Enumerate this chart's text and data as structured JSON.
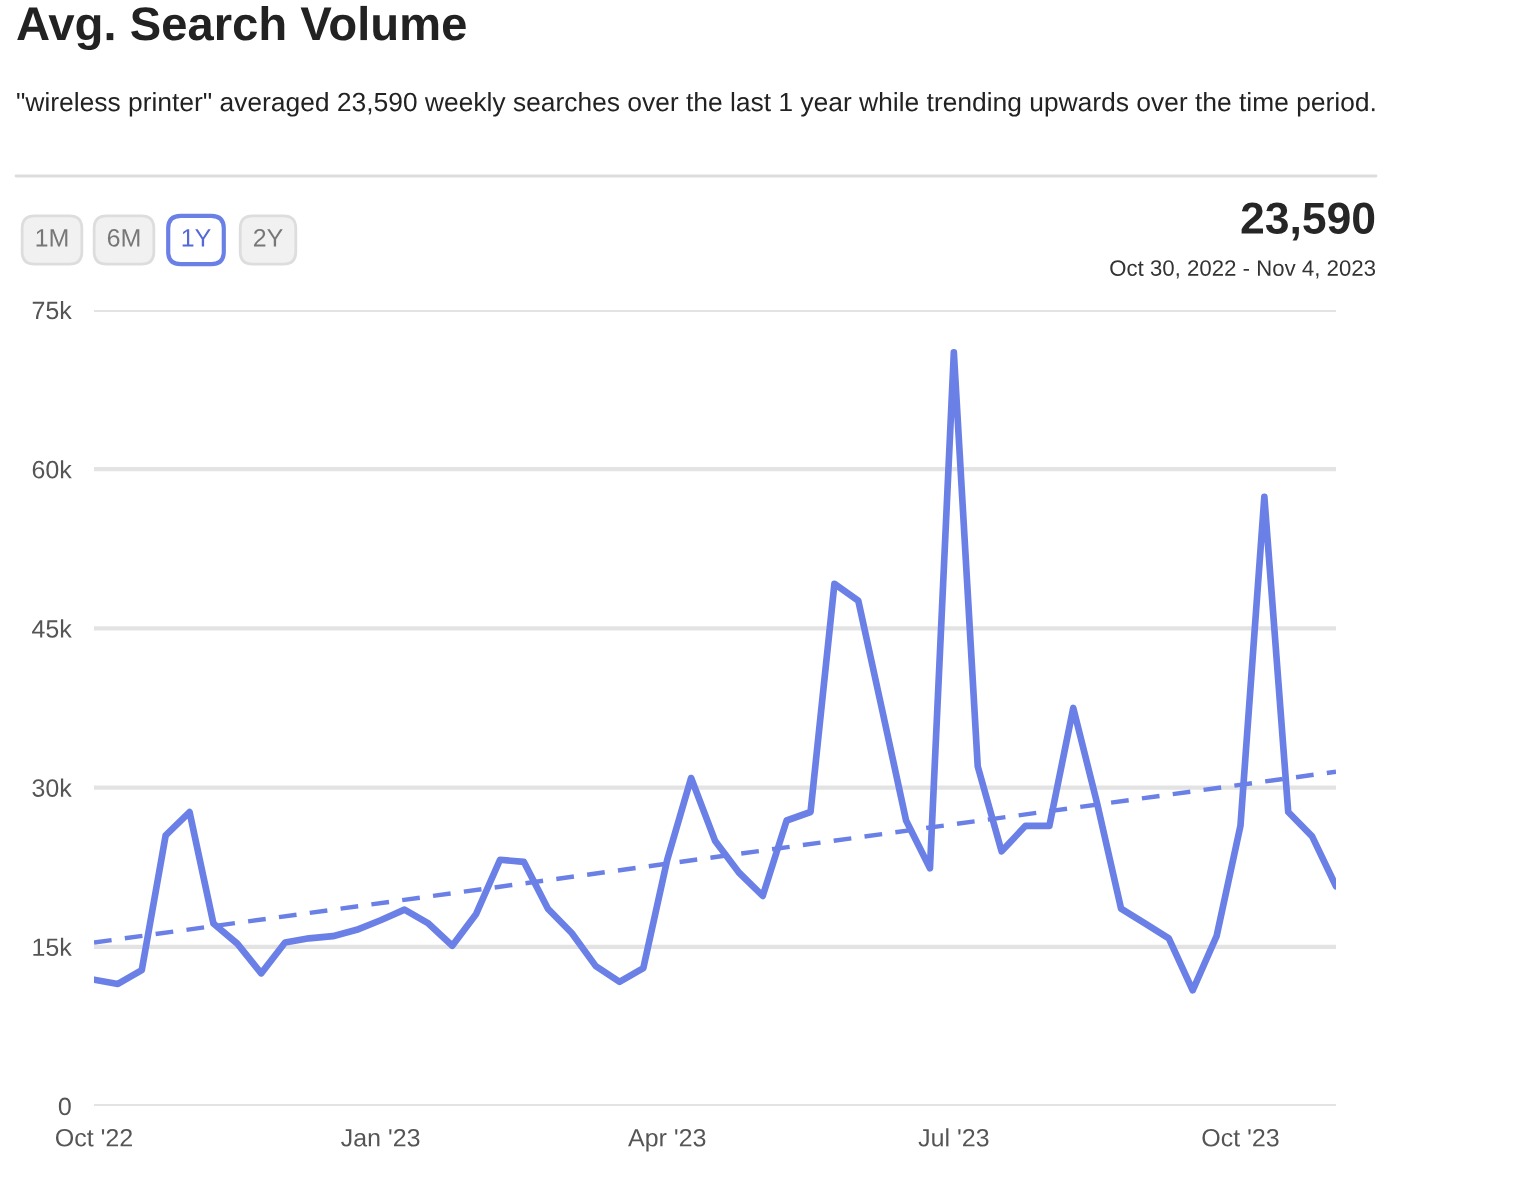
{
  "chart_data": {
    "type": "line",
    "title": "Avg. Search Volume",
    "subtitle": "\"wireless printer\" averaged 23,590 weekly searches over the last 1 year while trending upwards over the time period.",
    "annotations": [
      "23,590",
      "Oct 30, 2022 - Nov 4, 2023",
      "1M",
      "6M",
      "1Y",
      "2Y"
    ],
    "categories": [
      "Oct '22",
      null,
      null,
      null,
      null,
      null,
      null,
      null,
      null,
      null,
      null,
      null,
      "Jan '23",
      null,
      null,
      null,
      null,
      null,
      null,
      null,
      null,
      null,
      null,
      null,
      "Apr '23",
      null,
      null,
      null,
      null,
      null,
      null,
      null,
      null,
      null,
      null,
      null,
      "Jul '23",
      null,
      null,
      null,
      null,
      null,
      null,
      null,
      null,
      null,
      null,
      null,
      "Oct '23",
      null,
      null,
      null,
      null
    ],
    "series": [
      {
        "color": "#6b80e6",
        "line_style": "solid",
        "values": [
          11900,
          11500,
          12800,
          25500,
          27700,
          17200,
          15300,
          12500,
          15400,
          15800,
          16000,
          16600,
          17500,
          18500,
          17200,
          15100,
          18100,
          23200,
          23000,
          18600,
          16300,
          13200,
          11700,
          13000,
          23200,
          30900,
          25000,
          22000,
          19800,
          26900,
          27700,
          49200,
          47600,
          37300,
          26900,
          22400,
          71000,
          32000,
          24000,
          26400,
          26400,
          37500,
          28500,
          18600,
          17200,
          15800,
          10900,
          16000,
          26400,
          57400,
          27700,
          25400,
          20700
        ]
      },
      {
        "color": "#6b80e6",
        "line_style": "dashed",
        "values": [
          15400,
          null,
          null,
          null,
          null,
          null,
          null,
          null,
          null,
          null,
          null,
          null,
          null,
          null,
          null,
          null,
          null,
          null,
          null,
          null,
          null,
          null,
          null,
          null,
          null,
          null,
          null,
          null,
          null,
          null,
          null,
          null,
          null,
          null,
          null,
          null,
          null,
          null,
          null,
          null,
          null,
          null,
          null,
          null,
          null,
          null,
          null,
          null,
          null,
          null,
          null,
          null,
          31500
        ]
      }
    ],
    "ylim": [
      0,
      75000
    ],
    "yticks": [
      {
        "value": 0,
        "label": "0"
      },
      {
        "value": 15000,
        "label": "15k"
      },
      {
        "value": 30000,
        "label": "30k"
      },
      {
        "value": 45000,
        "label": "45k"
      },
      {
        "value": 60000,
        "label": "60k"
      },
      {
        "value": 75000,
        "label": "75k"
      }
    ],
    "grid": "y",
    "legend": false
  }
}
